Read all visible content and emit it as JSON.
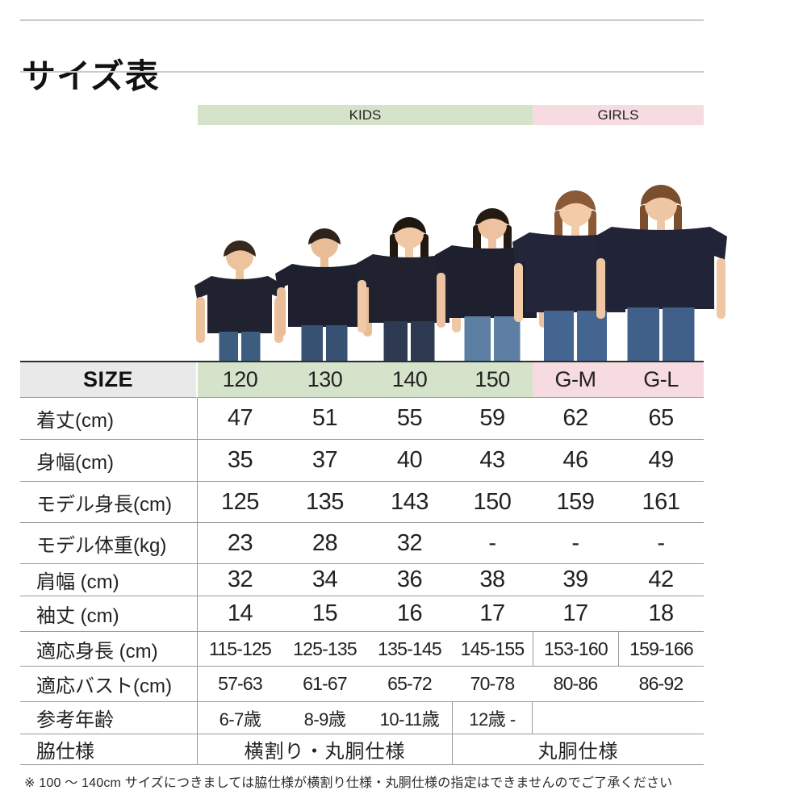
{
  "page": {
    "title": "サイズ表"
  },
  "header": {
    "kids_label": "KIDS",
    "girls_label": "GIRLS"
  },
  "table": {
    "size_label": "SIZE",
    "sizes": [
      "120",
      "130",
      "140",
      "150",
      "G-M",
      "G-L"
    ],
    "rows": [
      {
        "label": "着丈(cm)",
        "values": [
          "47",
          "51",
          "55",
          "59",
          "62",
          "65"
        ]
      },
      {
        "label": "身幅(cm)",
        "values": [
          "35",
          "37",
          "40",
          "43",
          "46",
          "49"
        ]
      },
      {
        "label": "モデル身長(cm)",
        "values": [
          "125",
          "135",
          "143",
          "150",
          "159",
          "161"
        ]
      },
      {
        "label": "モデル体重(kg)",
        "values": [
          "23",
          "28",
          "32",
          "-",
          "-",
          "-"
        ]
      },
      {
        "label": "肩幅 (cm)",
        "values": [
          "32",
          "34",
          "36",
          "38",
          "39",
          "42"
        ]
      },
      {
        "label": "袖丈 (cm)",
        "values": [
          "14",
          "15",
          "16",
          "17",
          "17",
          "18"
        ]
      },
      {
        "label": "適応身長 (cm)",
        "values": [
          "115-125",
          "125-135",
          "135-145",
          "145-155",
          "153-160",
          "159-166"
        ]
      },
      {
        "label": "適応バスト(cm)",
        "values": [
          "57-63",
          "61-67",
          "65-72",
          "70-78",
          "80-86",
          "86-92"
        ]
      }
    ],
    "age_row": {
      "label": "参考年齢",
      "values": [
        "6-7歳",
        "8-9歳",
        "10-11歳",
        "12歳 -"
      ]
    },
    "spec_row": {
      "label": "脇仕様",
      "kids_value": "横割り・丸胴仕様",
      "girls_value": "丸胴仕様"
    }
  },
  "models": [
    {
      "size": "120",
      "type": "boy"
    },
    {
      "size": "130",
      "type": "boy"
    },
    {
      "size": "140",
      "type": "girl"
    },
    {
      "size": "150",
      "type": "girl"
    },
    {
      "size": "G-M",
      "type": "woman"
    },
    {
      "size": "G-L",
      "type": "woman"
    }
  ],
  "note": "※ 100 ～ 140cm サイズにつきましては脇仕様が横割り仕様・丸胴仕様の指定はできませんのでご了承ください",
  "colors": {
    "kids_bg": "#d6e3cb",
    "girls_bg": "#f6dce1",
    "size_bg": "#e9e9e9",
    "shirt_navy": "#20222f"
  }
}
